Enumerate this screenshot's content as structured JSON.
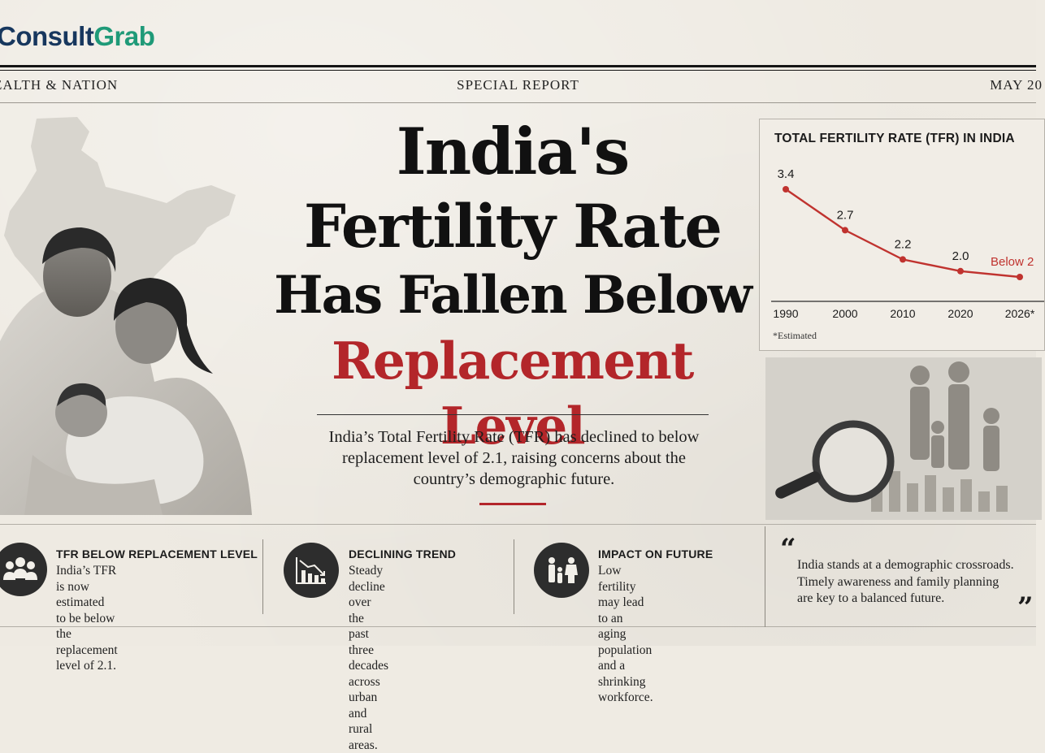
{
  "brand": {
    "part1": "Consult",
    "part2": "Grab"
  },
  "masthead": {
    "left": "EALTH & NATION",
    "center": "SPECIAL REPORT",
    "right": "MAY 20"
  },
  "headline": {
    "line1": "India's",
    "line2": "Fertility Rate",
    "line3": "Has Fallen Below",
    "line4": "Replacement Level"
  },
  "intro": "India’s Total Fertility Rate (TFR) has declined to below replacement level of 2.1, raising concerns about the country’s demographic future.",
  "chart_data": {
    "type": "line",
    "title": "TOTAL FERTILITY RATE (TFR) IN INDIA",
    "categories": [
      "1990",
      "2000",
      "2010",
      "2020",
      "2026*"
    ],
    "series": [
      {
        "values": [
          3.4,
          2.7,
          2.2,
          2.0,
          1.9
        ]
      }
    ],
    "data_labels": [
      "3.4",
      "2.7",
      "2.2",
      "2.0",
      "Below 2"
    ],
    "ylim": [
      1.4,
      3.9
    ],
    "grid": false,
    "note": "*Estimated",
    "line_color": "#c0332f"
  },
  "features": [
    {
      "icon": "people-group-icon",
      "title": "TFR BELOW REPLACEMENT LEVEL",
      "text": [
        "India’s TFR is now estimated",
        "to be below the replacement",
        "level of 2.1."
      ]
    },
    {
      "icon": "declining-chart-icon",
      "title": "DECLINING TREND",
      "text": [
        "Steady decline over the",
        "past three decades across",
        "urban and rural areas."
      ]
    },
    {
      "icon": "family-icon",
      "title": "IMPACT ON FUTURE",
      "text": [
        "Low fertility may lead to an",
        "aging population and a",
        "shrinking workforce."
      ]
    }
  ],
  "quote": {
    "open": "“",
    "close": "”",
    "lines": [
      "India stands at a demographic crossroads.",
      "Timely awareness and family planning",
      "are key to a balanced future."
    ]
  },
  "colors": {
    "accent_red": "#b3262a",
    "brand_blue": "#17375e",
    "brand_green": "#1f9a78"
  }
}
